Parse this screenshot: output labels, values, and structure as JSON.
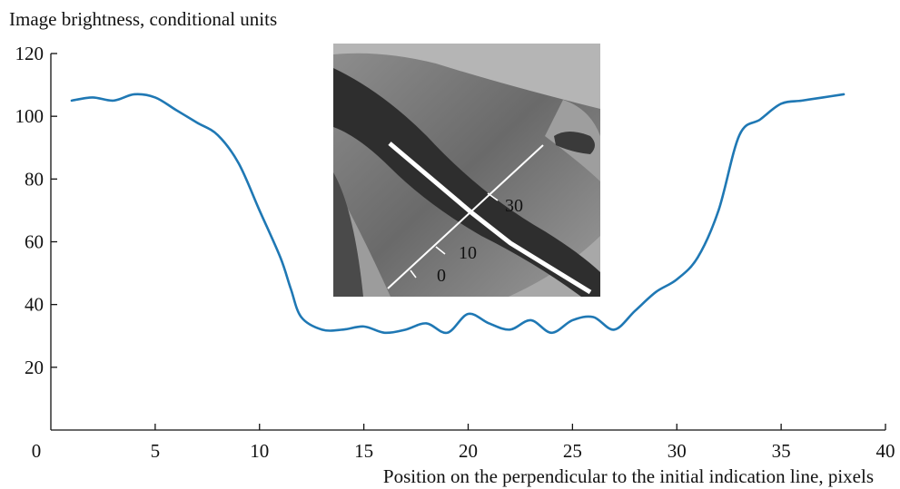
{
  "chart_data": {
    "type": "line",
    "title": "",
    "xlabel": "Position on the perpendicular to the initial indication line, pixels",
    "ylabel": "Image brightness, conditional units",
    "xlim": [
      0,
      40
    ],
    "ylim": [
      0,
      120
    ],
    "xticks": [
      0,
      5,
      10,
      15,
      20,
      25,
      30,
      35,
      40
    ],
    "yticks": [
      20,
      40,
      60,
      80,
      100,
      120
    ],
    "grid": false,
    "legend": "none",
    "line_color": "#1f78b4",
    "series": [
      {
        "x": [
          1,
          2,
          3,
          4,
          5,
          6,
          7,
          8,
          9,
          10,
          11,
          11.5,
          12,
          13,
          14,
          15,
          16,
          17,
          18,
          19,
          20,
          21,
          22,
          23,
          24,
          25,
          26,
          27,
          28,
          29,
          30,
          31,
          32,
          33,
          34,
          35,
          36,
          37,
          38
        ],
        "y": [
          105,
          106,
          105,
          107,
          106,
          102,
          98,
          94,
          85,
          70,
          55,
          45,
          36,
          32,
          32,
          33,
          31,
          32,
          34,
          31,
          37,
          34,
          32,
          35,
          31,
          35,
          36,
          32,
          38,
          44,
          48,
          55,
          70,
          94,
          99,
          104,
          105,
          106,
          107
        ]
      }
    ],
    "inset": {
      "description_labels": [
        "0",
        "10",
        "30"
      ]
    }
  }
}
